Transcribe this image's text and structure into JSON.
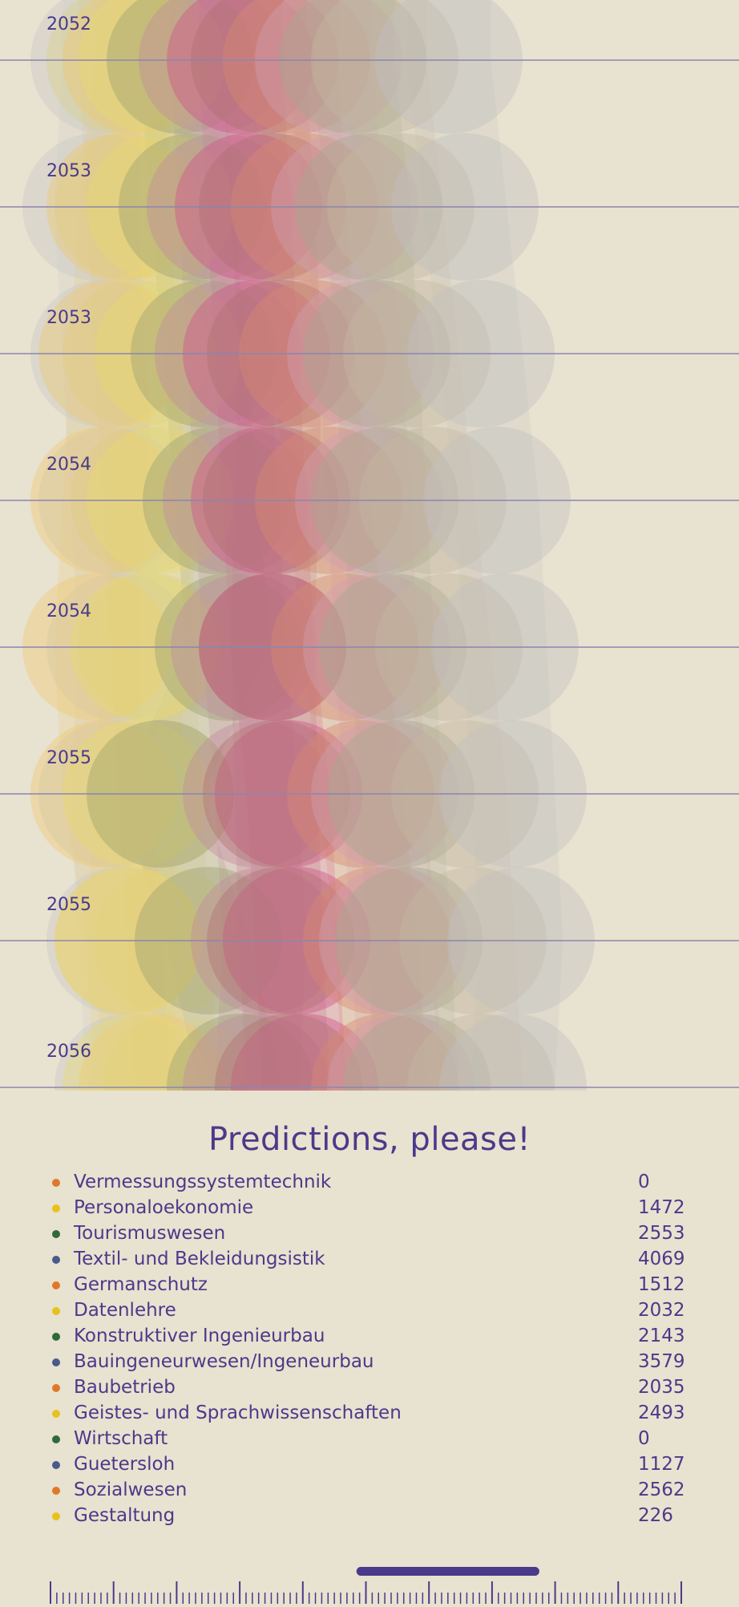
{
  "chart_data": {
    "type": "scatter",
    "y_axis_labels": [
      "2052",
      "2053",
      "2053",
      "2054",
      "2054",
      "2055",
      "2055",
      "2056"
    ],
    "grid": true,
    "series": [
      {
        "color": "#c7c7c7",
        "x": [
          130,
          120,
          130,
          140,
          150,
          140,
          150,
          160
        ]
      },
      {
        "color": "#d9cf8a",
        "x": [
          150,
          160,
          170,
          180,
          190,
          200,
          210,
          220
        ]
      },
      {
        "color": "#efc870",
        "x": [
          170,
          150,
          140,
          130,
          120,
          130,
          160,
          190
        ]
      },
      {
        "color": "#e8d870",
        "x": [
          190,
          200,
          210,
          200,
          180,
          170,
          160,
          170
        ]
      },
      {
        "color": "#9aa070",
        "x": [
          225,
          240,
          255,
          270,
          285,
          200,
          260,
          300
        ]
      },
      {
        "color": "#c08aa0",
        "x": [
          265,
          275,
          285,
          295,
          305,
          320,
          330,
          320
        ]
      },
      {
        "color": "#d0508a",
        "x": [
          300,
          310,
          320,
          330,
          340,
          360,
          370,
          380
        ]
      },
      {
        "color": "#b07070",
        "x": [
          330,
          340,
          350,
          345,
          340,
          345,
          350,
          360
        ]
      },
      {
        "color": "#d68a70",
        "x": [
          370,
          380,
          390,
          410,
          430,
          450,
          470,
          480
        ]
      },
      {
        "color": "#d0a0b0",
        "x": [
          410,
          430,
          450,
          460,
          470,
          480,
          490,
          500
        ]
      },
      {
        "color": "#a8a890",
        "x": [
          440,
          460,
          470,
          480,
          490,
          500,
          510,
          520
        ]
      },
      {
        "color": "#c4b8a0",
        "x": [
          480,
          500,
          520,
          540,
          560,
          580,
          590,
          600
        ]
      },
      {
        "color": "#c0c0c0",
        "x": [
          560,
          580,
          600,
          620,
          630,
          640,
          650,
          640
        ]
      }
    ]
  },
  "title": "Predictions, please!",
  "legend": [
    {
      "name": "Vermessungssystemtechnik",
      "value": "0",
      "color": "#e0782a"
    },
    {
      "name": "Personaloekonomie",
      "value": "1472",
      "color": "#e6c21c"
    },
    {
      "name": "Tourismuswesen",
      "value": "2553",
      "color": "#2e6a3a"
    },
    {
      "name": "Textil- und Bekleidungsistik",
      "value": "4069",
      "color": "#4a5a8a"
    },
    {
      "name": "Germanschutz",
      "value": "1512",
      "color": "#e0782a"
    },
    {
      "name": "Datenlehre",
      "value": "2032",
      "color": "#e6c21c"
    },
    {
      "name": "Konstruktiver Ingenieurbau",
      "value": "2143",
      "color": "#2e6a3a"
    },
    {
      "name": "Bauingeneurwesen/Ingeneurbau",
      "value": "3579",
      "color": "#4a5a8a"
    },
    {
      "name": "Baubetrieb",
      "value": "2035",
      "color": "#e0782a"
    },
    {
      "name": "Geistes- und Sprachwissenschaften",
      "value": "2493",
      "color": "#e6c21c"
    },
    {
      "name": "Wirtschaft",
      "value": "0",
      "color": "#2e6a3a"
    },
    {
      "name": "Guetersloh",
      "value": "1127",
      "color": "#4a5a8a"
    },
    {
      "name": "Sozialwesen",
      "value": "2562",
      "color": "#e0782a"
    },
    {
      "name": "Gestaltung",
      "value": "226",
      "color": "#e6c21c"
    }
  ],
  "timeline": {
    "accent": "#4a3a8a",
    "range_start": 0.485,
    "range_end": 0.775
  }
}
